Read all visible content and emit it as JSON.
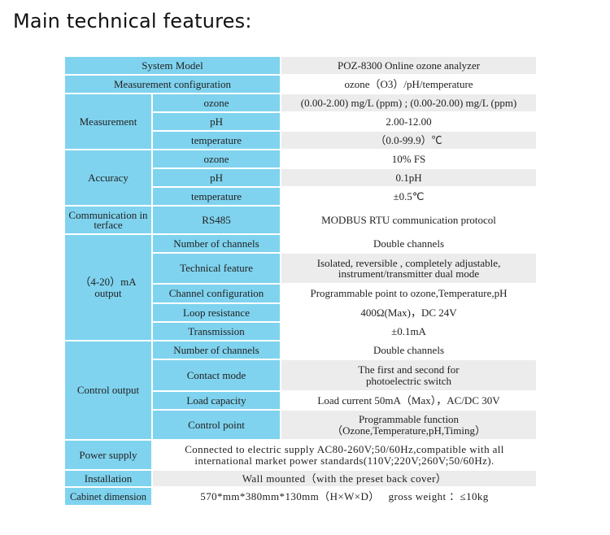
{
  "title": "Main technical features:",
  "rows": {
    "system_model": {
      "label": "System Model",
      "value": "POZ-8300 Online ozone analyzer"
    },
    "measurement_config": {
      "label": "Measurement configuration",
      "value": "ozone（O3）/pH/temperature"
    },
    "measurement": {
      "label": "Measurement",
      "items": [
        {
          "label": "ozone",
          "value": "(0.00-2.00) mg/L (ppm) ; (0.00-20.00) mg/L (ppm)"
        },
        {
          "label": "pH",
          "value": "2.00-12.00"
        },
        {
          "label": "temperature",
          "value": "（0.0-99.9）℃"
        }
      ]
    },
    "accuracy": {
      "label": "Accuracy",
      "items": [
        {
          "label": "ozone",
          "value": "10% FS"
        },
        {
          "label": "pH",
          "value": "0.1pH"
        },
        {
          "label": "temperature",
          "value": "±0.5℃"
        }
      ]
    },
    "comm": {
      "label": "Communication interface",
      "sub": "RS485",
      "value": "MODBUS RTU communication protocol"
    },
    "ma_output": {
      "label": "（4-20）mA output",
      "items": [
        {
          "label": "Number of channels",
          "value": "Double channels"
        },
        {
          "label": "Technical feature",
          "value": "Isolated, reversible , completely adjustable, instrument/transmitter dual mode"
        },
        {
          "label": "Channel configuration",
          "value": "Programmable point to ozone,Temperature,pH"
        },
        {
          "label": "Loop resistance",
          "value": "400Ω(Max)，DC 24V"
        },
        {
          "label": "Transmission",
          "value": "±0.1mA"
        }
      ]
    },
    "control_output": {
      "label": "Control output",
      "items": [
        {
          "label": "Number of channels",
          "value": "Double channels"
        },
        {
          "label": "Contact mode",
          "value": "The first and second for photoelectric switch"
        },
        {
          "label": "Load capacity",
          "value": "Load current 50mA（Max），AC/DC 30V"
        },
        {
          "label": "Control point",
          "value": "Programmable function （Ozone,Temperature,pH,Timing）"
        }
      ]
    },
    "power_supply": {
      "label": "Power supply",
      "value": "Connected to electric supply AC80-260V;50/60Hz,compatible with all international market power standards(110V;220V;260V;50/60Hz)."
    },
    "installation": {
      "label": "Installation",
      "value": "Wall mounted（with the preset back cover）"
    },
    "cabinet": {
      "label": "Cabinet dimension",
      "value": "570*mm*380mm*130mm（H×W×D）   gross weight ：≤10kg"
    }
  },
  "colors": {
    "header_blue": "#7fd3ef",
    "row_gray": "#ececec"
  }
}
